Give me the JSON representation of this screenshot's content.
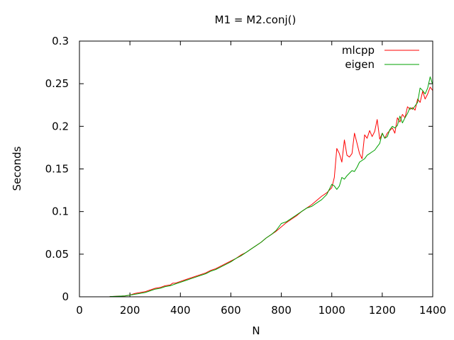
{
  "chart_data": {
    "type": "line",
    "title": "M1 = M2.conj()",
    "xlabel": "N",
    "ylabel": "Seconds",
    "xlim": [
      0,
      1400
    ],
    "ylim": [
      0,
      0.3
    ],
    "xticks": [
      0,
      200,
      400,
      600,
      800,
      1000,
      1200,
      1400
    ],
    "yticks": [
      0,
      0.05,
      0.1,
      0.15,
      0.2,
      0.25,
      0.3
    ],
    "xtick_labels": [
      "0",
      "200",
      "400",
      "600",
      "800",
      "1000",
      "1200",
      "1400"
    ],
    "ytick_labels": [
      "0",
      "0.05",
      "0.1",
      "0.15",
      "0.2",
      "0.25",
      "0.3"
    ],
    "grid": false,
    "legend_position": "top-right",
    "series": [
      {
        "name": "mlcpp",
        "color": "#ff0000",
        "x": [
          120,
          150,
          180,
          200,
          220,
          240,
          260,
          280,
          300,
          320,
          340,
          360,
          370,
          380,
          400,
          420,
          440,
          460,
          480,
          500,
          520,
          540,
          560,
          580,
          600,
          620,
          640,
          660,
          680,
          700,
          720,
          740,
          760,
          780,
          800,
          820,
          840,
          860,
          880,
          900,
          920,
          940,
          960,
          980,
          1000,
          1010,
          1020,
          1030,
          1040,
          1050,
          1060,
          1070,
          1080,
          1090,
          1100,
          1110,
          1120,
          1130,
          1140,
          1150,
          1160,
          1170,
          1180,
          1190,
          1200,
          1210,
          1220,
          1230,
          1240,
          1250,
          1260,
          1270,
          1280,
          1290,
          1300,
          1310,
          1320,
          1330,
          1340,
          1350,
          1360,
          1370,
          1380,
          1390,
          1400
        ],
        "y": [
          0.0003,
          0.0006,
          0.001,
          0.002,
          0.004,
          0.005,
          0.006,
          0.008,
          0.01,
          0.011,
          0.013,
          0.014,
          0.016,
          0.016,
          0.018,
          0.02,
          0.022,
          0.024,
          0.026,
          0.028,
          0.031,
          0.033,
          0.036,
          0.039,
          0.042,
          0.045,
          0.049,
          0.052,
          0.056,
          0.06,
          0.064,
          0.069,
          0.073,
          0.077,
          0.082,
          0.087,
          0.091,
          0.095,
          0.1,
          0.104,
          0.108,
          0.113,
          0.118,
          0.122,
          0.128,
          0.14,
          0.174,
          0.168,
          0.158,
          0.184,
          0.166,
          0.164,
          0.168,
          0.192,
          0.18,
          0.168,
          0.162,
          0.19,
          0.186,
          0.195,
          0.188,
          0.194,
          0.208,
          0.185,
          0.192,
          0.186,
          0.192,
          0.195,
          0.198,
          0.192,
          0.21,
          0.205,
          0.214,
          0.21,
          0.223,
          0.22,
          0.222,
          0.219,
          0.232,
          0.228,
          0.241,
          0.232,
          0.238,
          0.246,
          0.242
        ]
      },
      {
        "name": "eigen",
        "color": "#00a000",
        "x": [
          120,
          150,
          180,
          200,
          220,
          240,
          260,
          280,
          300,
          320,
          340,
          360,
          380,
          400,
          420,
          440,
          460,
          480,
          500,
          520,
          540,
          560,
          580,
          600,
          620,
          640,
          660,
          680,
          700,
          720,
          740,
          760,
          780,
          800,
          820,
          840,
          860,
          880,
          900,
          920,
          940,
          960,
          980,
          1000,
          1010,
          1020,
          1030,
          1040,
          1050,
          1060,
          1070,
          1080,
          1090,
          1100,
          1110,
          1120,
          1130,
          1140,
          1150,
          1160,
          1170,
          1180,
          1190,
          1200,
          1210,
          1220,
          1230,
          1240,
          1250,
          1260,
          1270,
          1280,
          1290,
          1300,
          1310,
          1320,
          1330,
          1340,
          1350,
          1360,
          1370,
          1380,
          1390,
          1400
        ],
        "y": [
          0.0003,
          0.0006,
          0.001,
          0.002,
          0.003,
          0.004,
          0.005,
          0.007,
          0.009,
          0.01,
          0.012,
          0.013,
          0.015,
          0.017,
          0.019,
          0.021,
          0.023,
          0.025,
          0.027,
          0.03,
          0.032,
          0.035,
          0.038,
          0.041,
          0.045,
          0.048,
          0.052,
          0.056,
          0.06,
          0.064,
          0.069,
          0.073,
          0.078,
          0.086,
          0.088,
          0.092,
          0.096,
          0.1,
          0.104,
          0.106,
          0.11,
          0.114,
          0.12,
          0.132,
          0.13,
          0.126,
          0.13,
          0.14,
          0.138,
          0.142,
          0.145,
          0.148,
          0.147,
          0.152,
          0.158,
          0.16,
          0.162,
          0.166,
          0.168,
          0.17,
          0.172,
          0.176,
          0.18,
          0.192,
          0.186,
          0.188,
          0.196,
          0.2,
          0.198,
          0.201,
          0.212,
          0.204,
          0.21,
          0.215,
          0.222,
          0.22,
          0.224,
          0.228,
          0.245,
          0.242,
          0.238,
          0.245,
          0.258,
          0.249
        ]
      }
    ]
  }
}
